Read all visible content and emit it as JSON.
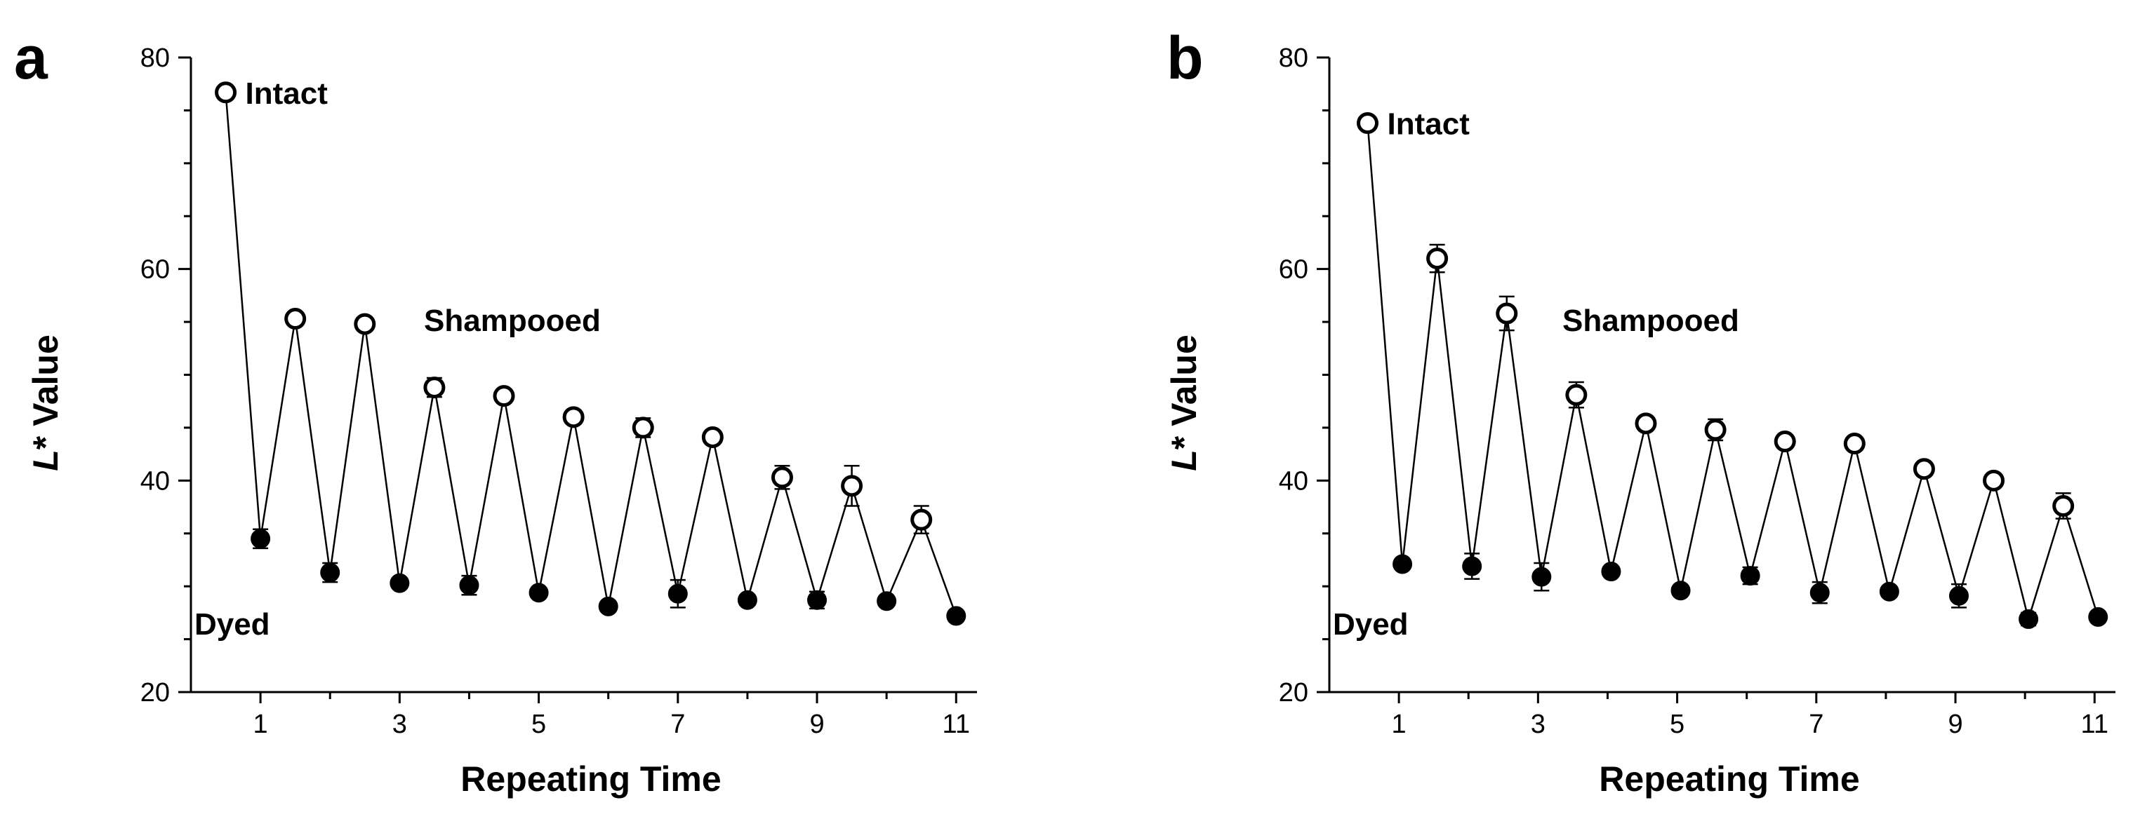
{
  "chart_data": [
    {
      "panel": "a",
      "type": "line",
      "xlabel": "Repeating Time",
      "ylabel": {
        "italic": "L",
        "rest": "* Value"
      },
      "xlim": [
        0,
        11.3
      ],
      "ylim": [
        20,
        80
      ],
      "xticks": [
        1,
        3,
        5,
        7,
        9,
        11
      ],
      "yticks": [
        20,
        40,
        60,
        80
      ],
      "series": [
        {
          "name": "Shampooed",
          "marker": "open-circle",
          "x": [
            0.5,
            1.5,
            2.5,
            3.5,
            4.5,
            5.5,
            6.5,
            7.5,
            8.5,
            9.5,
            10.5
          ],
          "y": [
            76.7,
            55.3,
            54.8,
            48.8,
            48.0,
            46.0,
            45.0,
            44.1,
            40.3,
            39.5,
            36.3
          ],
          "err": [
            0.4,
            0.4,
            0.4,
            0.9,
            0.5,
            0.5,
            0.9,
            0.5,
            1.1,
            1.9,
            1.3
          ]
        },
        {
          "name": "Dyed",
          "marker": "filled-circle",
          "x": [
            1,
            2,
            3,
            4,
            5,
            6,
            7,
            8,
            9,
            10,
            11
          ],
          "y": [
            34.5,
            31.3,
            30.3,
            30.1,
            29.4,
            28.1,
            29.3,
            28.7,
            28.7,
            28.6,
            27.2
          ],
          "err": [
            0.9,
            0.9,
            0.4,
            0.9,
            0.4,
            0.4,
            1.3,
            0.4,
            0.8,
            0.4,
            0.5
          ]
        }
      ],
      "annotations": {
        "intact": "Intact",
        "shampooed": "Shampooed",
        "dyed": "Dyed"
      }
    },
    {
      "panel": "b",
      "type": "line",
      "xlabel": "Repeating Time",
      "ylabel": {
        "italic": "L",
        "rest": "* Value"
      },
      "xlim": [
        0,
        11.3
      ],
      "ylim": [
        20,
        80
      ],
      "xticks": [
        1,
        3,
        5,
        7,
        9,
        11
      ],
      "yticks": [
        20,
        40,
        60,
        80
      ],
      "series": [
        {
          "name": "Shampooed",
          "marker": "open-circle",
          "x": [
            0.55,
            1.55,
            2.55,
            3.55,
            4.55,
            5.55,
            6.55,
            7.55,
            8.55,
            9.55,
            10.55
          ],
          "y": [
            73.8,
            61.0,
            55.8,
            48.1,
            45.4,
            44.8,
            43.7,
            43.5,
            41.1,
            40.0,
            37.6
          ],
          "err": [
            0.4,
            1.3,
            1.6,
            1.2,
            0.5,
            1.0,
            0.5,
            0.5,
            0.5,
            0.5,
            1.2
          ]
        },
        {
          "name": "Dyed",
          "marker": "filled-circle",
          "x": [
            1.05,
            2.05,
            3.05,
            4.05,
            5.05,
            6.05,
            7.05,
            8.05,
            9.05,
            10.05,
            11.05
          ],
          "y": [
            32.1,
            31.9,
            30.9,
            31.4,
            29.6,
            31.0,
            29.4,
            29.5,
            29.1,
            26.9,
            27.1
          ],
          "err": [
            0.4,
            1.2,
            1.3,
            0.4,
            0.4,
            0.8,
            1.0,
            0.4,
            1.1,
            0.6,
            0.4
          ]
        }
      ],
      "annotations": {
        "intact": "Intact",
        "shampooed": "Shampooed",
        "dyed": "Dyed"
      }
    }
  ]
}
